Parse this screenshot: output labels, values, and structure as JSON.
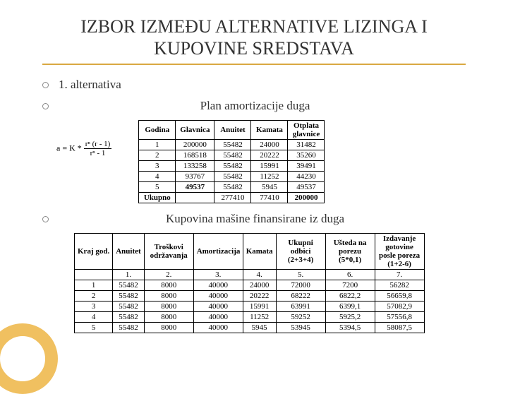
{
  "title": "IZBOR IZMEĐU ALTERNATIVE LIZINGA I KUPOVINE SREDSTAVA",
  "bullets": {
    "b1": "1. alternativa",
    "b2": "Plan amortizacije duga",
    "b3": "Kupovina mašine finansirane iz duga"
  },
  "formula": {
    "prefix": "a = K *",
    "num": "rⁿ (r - 1)",
    "den": "rⁿ - 1"
  },
  "table1": {
    "headers": [
      "Godina",
      "Glavnica",
      "Anuitet",
      "Kamata",
      "Otplata glavnice"
    ],
    "rows": [
      [
        "1",
        "200000",
        "55482",
        "24000",
        "31482"
      ],
      [
        "2",
        "168518",
        "55482",
        "20222",
        "35260"
      ],
      [
        "3",
        "133258",
        "55482",
        "15991",
        "39491"
      ],
      [
        "4",
        "93767",
        "55482",
        "11252",
        "44230"
      ],
      [
        "5",
        "49537",
        "55482",
        "5945",
        "49537"
      ],
      [
        "Ukupno",
        "",
        "277410",
        "77410",
        "200000"
      ]
    ]
  },
  "table2": {
    "headers": [
      "Kraj god.",
      "Anuitet",
      "Troškovi održavanja",
      "Amortizacija",
      "Kamata",
      "Ukupni odbici (2+3+4)",
      "Ušteda na porezu (5*0,1)",
      "Izdavanje gotovine posle poreza (1+2-6)"
    ],
    "subheaders": [
      "",
      "1.",
      "2.",
      "3.",
      "4.",
      "5.",
      "6.",
      "7."
    ],
    "rows": [
      [
        "1",
        "55482",
        "8000",
        "40000",
        "24000",
        "72000",
        "7200",
        "56282"
      ],
      [
        "2",
        "55482",
        "8000",
        "40000",
        "20222",
        "68222",
        "6822,2",
        "56659,8"
      ],
      [
        "3",
        "55482",
        "8000",
        "40000",
        "15991",
        "63991",
        "6399,1",
        "57082,9"
      ],
      [
        "4",
        "55482",
        "8000",
        "40000",
        "11252",
        "59252",
        "5925,2",
        "57556,8"
      ],
      [
        "5",
        "55482",
        "8000",
        "40000",
        "5945",
        "53945",
        "5394,5",
        "58087,5"
      ]
    ]
  }
}
